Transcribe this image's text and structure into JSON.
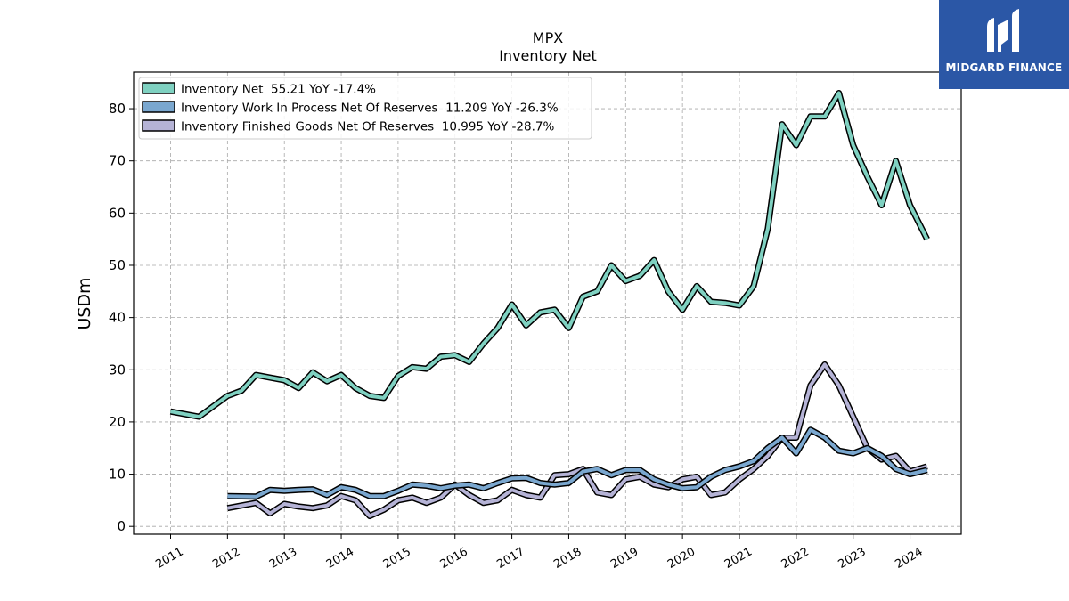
{
  "brand": {
    "name": "MIDGARD FINANCE",
    "bg_color": "#2b57a6"
  },
  "chart_data": {
    "type": "line",
    "title": "MPX",
    "subtitle": "Inventory Net",
    "ylabel": "USDm",
    "xlabel": "",
    "ylim": [
      -1.5,
      87
    ],
    "xlim": [
      2010.35,
      2024.9
    ],
    "yticks": [
      0,
      10,
      20,
      30,
      40,
      50,
      60,
      70,
      80
    ],
    "xticks": [
      2011,
      2012,
      2013,
      2014,
      2015,
      2016,
      2017,
      2018,
      2019,
      2020,
      2021,
      2022,
      2023,
      2024
    ],
    "grid": true,
    "legend_position": "top-left",
    "series": [
      {
        "name": "Inventory Net  55.21 YoY -17.4%",
        "color": "#7fd1c1",
        "x": [
          2011.0,
          2011.5,
          2011.75,
          2012.0,
          2012.25,
          2012.5,
          2012.75,
          2013.0,
          2013.25,
          2013.5,
          2013.75,
          2014.0,
          2014.25,
          2014.5,
          2014.75,
          2015.0,
          2015.25,
          2015.5,
          2015.75,
          2016.0,
          2016.25,
          2016.5,
          2016.75,
          2017.0,
          2017.25,
          2017.5,
          2017.75,
          2018.0,
          2018.25,
          2018.5,
          2018.75,
          2019.0,
          2019.25,
          2019.5,
          2019.75,
          2020.0,
          2020.25,
          2020.5,
          2020.75,
          2021.0,
          2021.25,
          2021.5,
          2021.75,
          2022.0,
          2022.25,
          2022.5,
          2022.75,
          2023.0,
          2023.25,
          2023.5,
          2023.75,
          2024.0,
          2024.3
        ],
        "values": [
          22.0,
          21.0,
          23.0,
          25.0,
          26.0,
          29.0,
          28.5,
          28.0,
          26.5,
          29.5,
          27.8,
          29.0,
          26.5,
          25.0,
          24.6,
          28.8,
          30.5,
          30.2,
          32.5,
          32.8,
          31.5,
          35.0,
          38.0,
          42.5,
          38.5,
          41.0,
          41.5,
          38.0,
          44.0,
          45.0,
          50.0,
          47.0,
          48.0,
          51.0,
          45.0,
          41.5,
          46.0,
          43.0,
          42.8,
          42.3,
          46.0,
          57.0,
          77.0,
          73.0,
          78.5,
          78.5,
          83.0,
          73.0,
          67.0,
          61.5,
          70.0,
          61.5,
          55.0
        ]
      },
      {
        "name": "Inventory Work In Process Net Of Reserves  11.209 YoY -26.3%",
        "color": "#7aa7cf",
        "x": [
          2012.0,
          2012.5,
          2012.75,
          2013.0,
          2013.25,
          2013.5,
          2013.75,
          2014.0,
          2014.25,
          2014.5,
          2014.75,
          2015.0,
          2015.25,
          2015.5,
          2015.75,
          2016.0,
          2016.25,
          2016.5,
          2016.75,
          2017.0,
          2017.25,
          2017.5,
          2017.75,
          2018.0,
          2018.25,
          2018.5,
          2018.75,
          2019.0,
          2019.25,
          2019.5,
          2019.75,
          2020.0,
          2020.25,
          2020.5,
          2020.75,
          2021.0,
          2021.25,
          2021.5,
          2021.75,
          2022.0,
          2022.25,
          2022.5,
          2022.75,
          2023.0,
          2023.25,
          2023.5,
          2023.75,
          2024.0,
          2024.3
        ],
        "values": [
          5.8,
          5.7,
          7.0,
          6.8,
          7.0,
          7.1,
          6.0,
          7.5,
          7.0,
          5.8,
          5.8,
          6.8,
          8.0,
          7.8,
          7.3,
          7.8,
          8.0,
          7.3,
          8.3,
          9.2,
          9.3,
          8.3,
          8.0,
          8.3,
          10.5,
          11.0,
          9.8,
          10.8,
          10.8,
          9.0,
          8.0,
          7.3,
          7.5,
          9.5,
          10.8,
          11.5,
          12.5,
          15.0,
          17.0,
          14.0,
          18.5,
          17.0,
          14.5,
          14.0,
          15.0,
          13.5,
          11.0,
          10.0,
          10.8
        ]
      },
      {
        "name": "Inventory Finished Goods Net Of Reserves  10.995 YoY -28.7%",
        "color": "#b5b3d6",
        "x": [
          2012.0,
          2012.5,
          2012.75,
          2013.0,
          2013.25,
          2013.5,
          2013.75,
          2014.0,
          2014.25,
          2014.5,
          2014.75,
          2015.0,
          2015.25,
          2015.5,
          2015.75,
          2016.0,
          2016.25,
          2016.5,
          2016.75,
          2017.0,
          2017.25,
          2017.5,
          2017.75,
          2018.0,
          2018.25,
          2018.5,
          2018.75,
          2019.0,
          2019.25,
          2019.5,
          2019.75,
          2020.0,
          2020.25,
          2020.5,
          2020.75,
          2021.0,
          2021.25,
          2021.5,
          2021.75,
          2022.0,
          2022.25,
          2022.5,
          2022.75,
          2023.0,
          2023.25,
          2023.5,
          2023.75,
          2024.0,
          2024.3
        ],
        "values": [
          3.5,
          4.5,
          2.5,
          4.3,
          3.8,
          3.5,
          4.0,
          5.8,
          5.0,
          2.0,
          3.2,
          5.0,
          5.5,
          4.5,
          5.5,
          8.0,
          6.0,
          4.5,
          5.0,
          7.0,
          6.0,
          5.5,
          9.8,
          10.0,
          11.0,
          6.5,
          6.0,
          9.0,
          9.5,
          8.0,
          7.5,
          9.0,
          9.5,
          6.0,
          6.5,
          9.0,
          11.0,
          13.5,
          17.0,
          17.0,
          27.0,
          31.0,
          27.0,
          21.0,
          15.0,
          12.8,
          13.5,
          10.5,
          11.5
        ]
      }
    ]
  }
}
